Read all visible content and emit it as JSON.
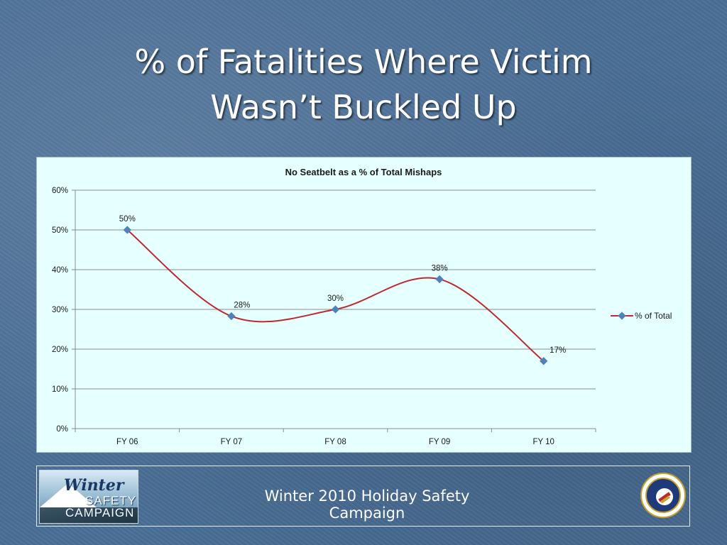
{
  "slide": {
    "title_line1": "% of Fatalities Where Victim",
    "title_line2": "Wasn’t Buckled Up"
  },
  "footer": {
    "text": "Winter 2010 Holiday Safety Campaign",
    "logo_text": {
      "line1": "Winter",
      "line2": "SAFETY",
      "line3": "CAMPAIGN"
    }
  },
  "colors": {
    "background": "#4a6e96",
    "chart_background": "#e6ffff",
    "line": "#c0282d",
    "marker": "#4f81bd",
    "gridline": "#8c8c8c"
  },
  "chart_data": {
    "type": "line",
    "title": "No Seatbelt as a % of Total Mishaps",
    "categories": [
      "FY 06",
      "FY 07",
      "FY 08",
      "FY 09",
      "FY 10"
    ],
    "series": [
      {
        "name": "% of Total",
        "values": [
          0.5,
          0.283,
          0.3,
          0.376,
          0.17
        ],
        "data_labels": [
          "50%",
          "28%",
          "30%",
          "38%",
          "17%"
        ]
      }
    ],
    "ylim": [
      0,
      0.6
    ],
    "y_ticks": [
      0,
      0.1,
      0.2,
      0.3,
      0.4,
      0.5,
      0.6
    ],
    "y_tick_labels": [
      "0%",
      "10%",
      "20%",
      "30%",
      "40%",
      "50%",
      "60%"
    ],
    "smoothed": true,
    "grid": true,
    "legend": "right"
  }
}
